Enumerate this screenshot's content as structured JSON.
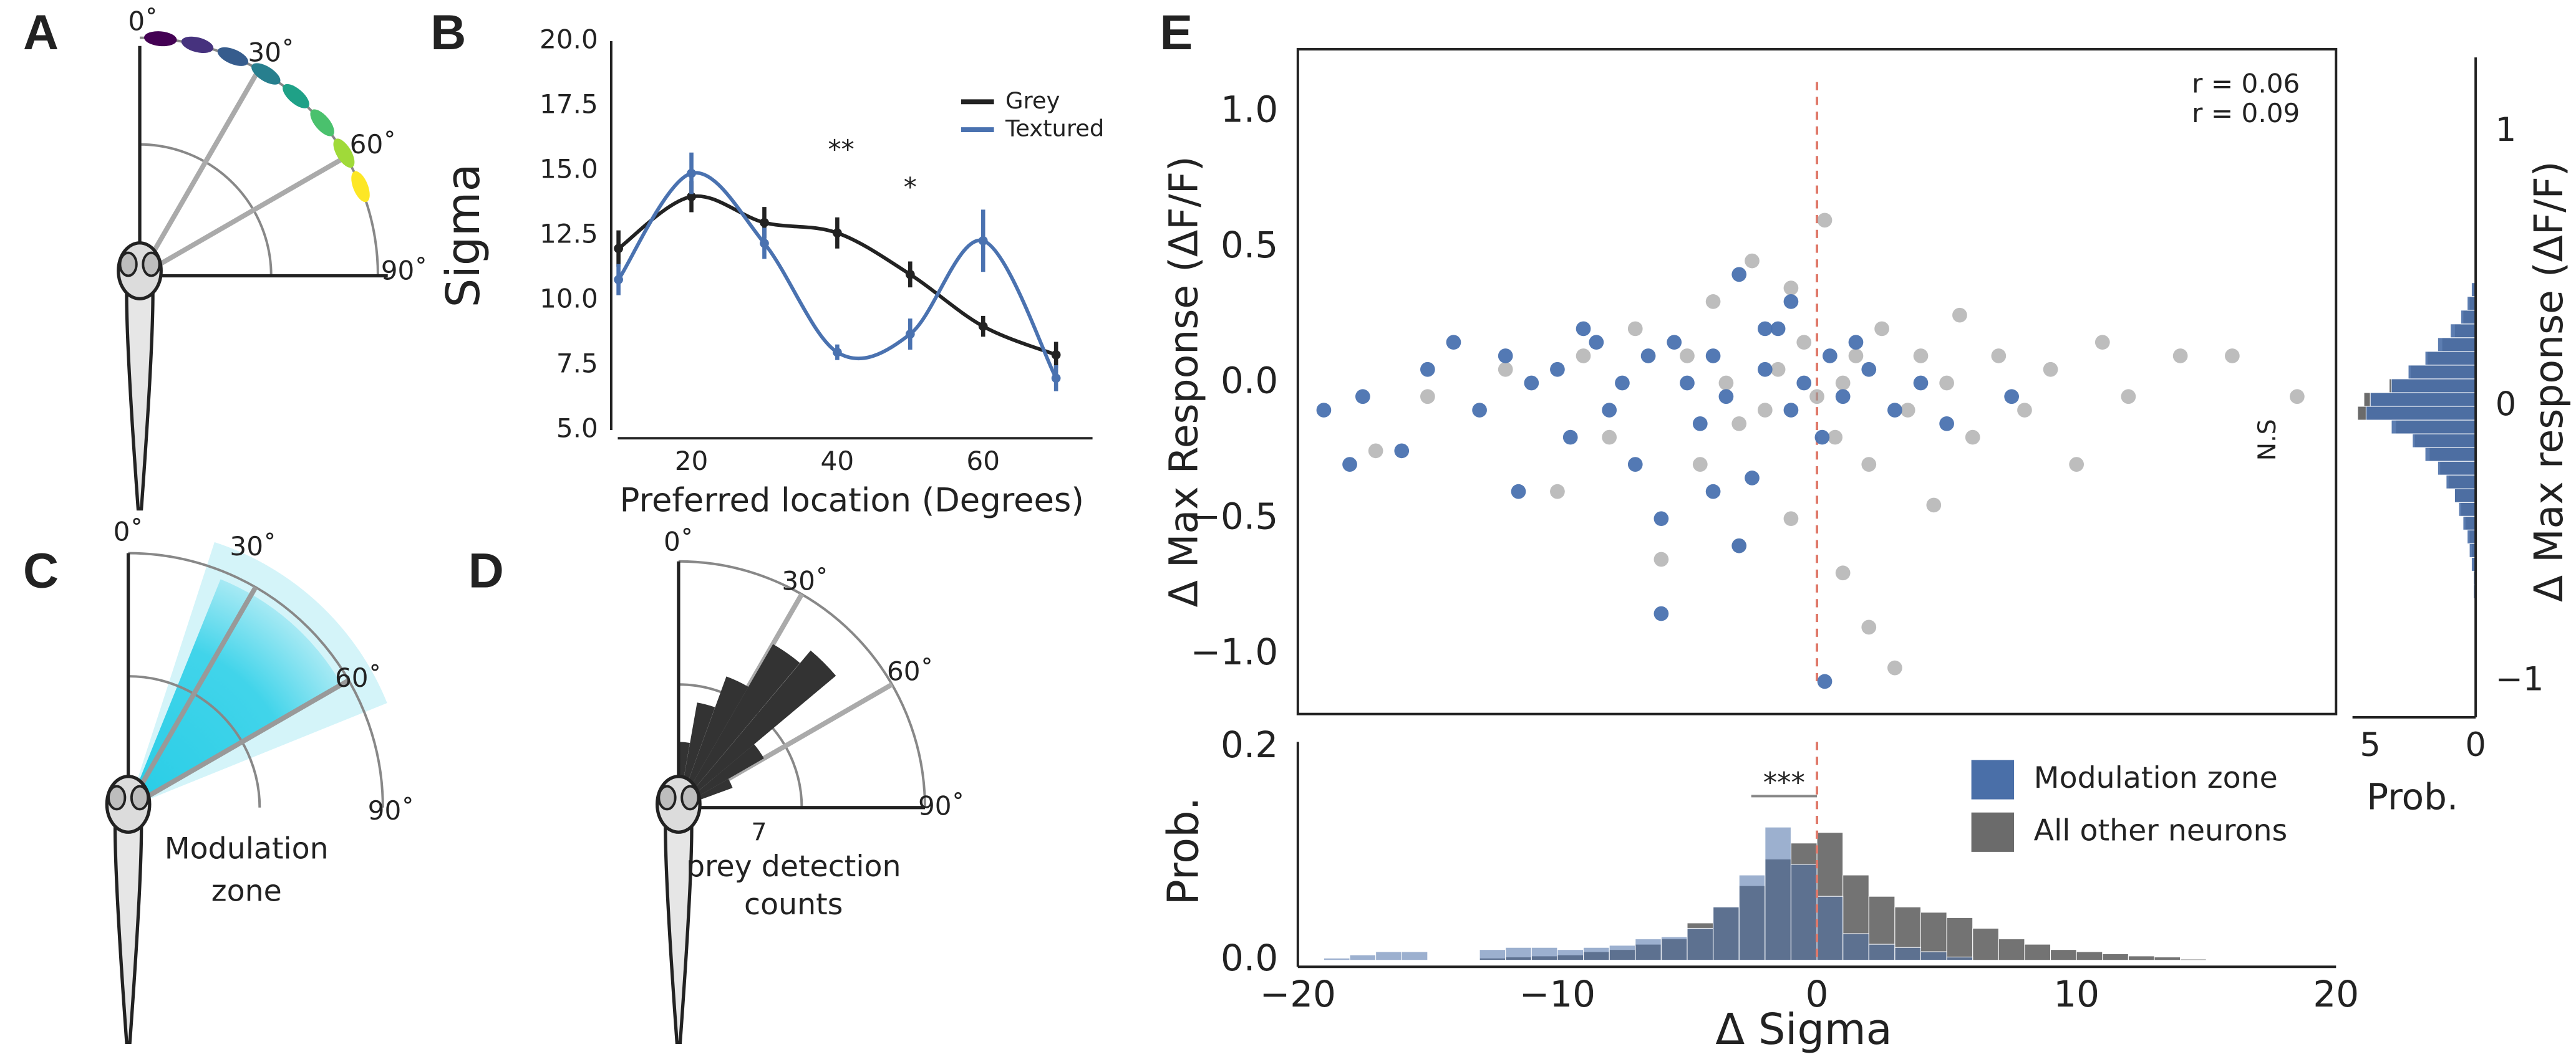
{
  "panels": {
    "letters": [
      "A",
      "B",
      "C",
      "D",
      "E"
    ],
    "A": {
      "angles": [
        "0˚",
        "30˚",
        "60˚",
        "90˚"
      ]
    },
    "C": {
      "angles": [
        "0˚",
        "30˚",
        "60˚",
        "90˚"
      ],
      "label": [
        "Modulation",
        "zone"
      ]
    },
    "D": {
      "angles": [
        "0˚",
        "30˚",
        "60˚",
        "90˚"
      ],
      "scale_tick": 7,
      "label": [
        "prey detection",
        "counts"
      ]
    }
  },
  "chart_data": [
    {
      "type": "line",
      "ylabel": "Sigma",
      "xlabel": "Preferred location (Degrees)",
      "x": [
        10,
        20,
        30,
        40,
        50,
        60,
        70
      ],
      "xlim": [
        9,
        75
      ],
      "xticks": [
        20,
        40,
        60
      ],
      "ylim": [
        5,
        20
      ],
      "yticks": [
        {
          "value": 5,
          "label": "5.0"
        },
        7.5,
        {
          "value": 10,
          "label": "10.0"
        },
        12.5,
        {
          "value": 15,
          "label": "15.0"
        },
        17.5,
        {
          "value": 20,
          "label": "20.0"
        }
      ],
      "series": [
        {
          "name": "Grey",
          "color": "#222222",
          "values": [
            12.0,
            14.0,
            13.0,
            12.6,
            11.0,
            9.0,
            7.9
          ],
          "errors": [
            0.7,
            0.6,
            0.6,
            0.6,
            0.5,
            0.4,
            0.5
          ]
        },
        {
          "name": "Textured",
          "color": "#4a72b0",
          "values": [
            10.8,
            14.9,
            12.2,
            8.0,
            8.7,
            12.3,
            7.0
          ],
          "errors": [
            0.6,
            0.8,
            0.6,
            0.3,
            0.6,
            1.2,
            0.5
          ]
        }
      ],
      "legend": "upper right",
      "annotations": [
        "**",
        "*"
      ]
    },
    {
      "type": "scatter",
      "ylabel": "Δ Max Response (ΔF/F)",
      "xlim": [
        -20,
        20
      ],
      "ylim": [
        -1.22,
        1.23
      ],
      "yticks": [
        {
          "value": -1,
          "label": "−1.0"
        },
        {
          "value": -0.5,
          "label": "−0.5"
        },
        {
          "value": 0,
          "label": "0.0"
        },
        0.5,
        {
          "value": 1,
          "label": "1.0"
        }
      ],
      "vline": 0,
      "series": [
        {
          "color": "#999999",
          "x": [
            -17,
            -15,
            -12,
            -10,
            -9,
            -8,
            -7,
            -6,
            -5,
            -4.5,
            -4,
            -3.5,
            -3,
            -2.5,
            -2,
            -1.5,
            -1,
            -0.5,
            0,
            0.3,
            0.7,
            1,
            1.5,
            2,
            2.5,
            3,
            3.5,
            4,
            4.5,
            5,
            5.5,
            6,
            7,
            8,
            9,
            10,
            11,
            12,
            14,
            16,
            18.5,
            2,
            -1,
            1,
            -3
          ],
          "values": [
            -0.25,
            -0.05,
            0.05,
            -0.4,
            0.1,
            -0.2,
            0.2,
            -0.65,
            0.1,
            -0.3,
            0.3,
            0,
            -0.15,
            0.45,
            -0.1,
            0.05,
            -0.5,
            0.15,
            -0.05,
            0.6,
            -0.2,
            0,
            0.1,
            -0.3,
            0.2,
            -1.05,
            -0.1,
            0.1,
            -0.45,
            0,
            0.25,
            -0.2,
            0.1,
            -0.1,
            0.05,
            -0.3,
            0.15,
            -0.05,
            0.1,
            0.1,
            -0.05,
            -0.9,
            0.35,
            -0.7,
            -0.6
          ]
        },
        {
          "color": "#4a72b0",
          "x": [
            -19,
            -18,
            -17.5,
            -16,
            -15,
            -14,
            -13,
            -12,
            -11.5,
            -11,
            -10,
            -9.5,
            -9,
            -8,
            -7.5,
            -7,
            -6.5,
            -6,
            -5.5,
            -5,
            -4.5,
            -4,
            -3.5,
            -3,
            -2.5,
            -2,
            -1.5,
            -1,
            -0.5,
            0.2,
            0.5,
            1,
            1.5,
            2,
            3,
            4,
            5,
            -2,
            -3,
            -6,
            -4,
            -1,
            7.5,
            -8.5,
            0.3
          ],
          "values": [
            -0.1,
            -0.3,
            -0.05,
            -0.25,
            0.05,
            0.15,
            -0.1,
            0.1,
            -0.4,
            0,
            0.05,
            -0.2,
            0.2,
            -0.1,
            0,
            -0.3,
            0.1,
            -0.5,
            0.15,
            0,
            -0.15,
            0.1,
            -0.05,
            0.4,
            -0.35,
            0.05,
            0.2,
            -0.1,
            0,
            -0.2,
            0.1,
            -0.05,
            0.15,
            0.05,
            -0.1,
            0,
            -0.15,
            0.2,
            -0.6,
            -0.85,
            -0.4,
            0.3,
            -0.05,
            0.15,
            -1.1
          ]
        }
      ],
      "annotations": [
        {
          "text": "r = 0.06",
          "color": "#222222"
        },
        {
          "text": "r = 0.09",
          "color": "#4a72b0"
        }
      ]
    },
    {
      "type": "histogram",
      "xlabel": "Δ Sigma",
      "ylabel": "Prob.",
      "bins": [
        -20,
        -19,
        -18,
        -17,
        -16,
        -15,
        -14,
        -13,
        -12,
        -11,
        -10,
        -9,
        -8,
        -7,
        -6,
        -5,
        -4,
        -3,
        -2,
        -1,
        0,
        1,
        2,
        3,
        4,
        5,
        6,
        7,
        8,
        9,
        10,
        11,
        12,
        13,
        14,
        15,
        16,
        17,
        18,
        19,
        20
      ],
      "xlim": [
        -20,
        20
      ],
      "xticks": [
        {
          "value": -20,
          "label": "−20"
        },
        {
          "value": -10,
          "label": "−10"
        },
        0,
        10,
        20
      ],
      "ylim": [
        0,
        0.205
      ],
      "yticks": [
        {
          "value": 0,
          "label": "0.0"
        },
        0.2
      ],
      "vline": 0,
      "legend": "upper right",
      "series": [
        {
          "name": "Modulation zone",
          "color": "#4a6fa8",
          "values": [
            0,
            0.002,
            0.005,
            0.008,
            0.008,
            0,
            0,
            0.01,
            0.012,
            0.012,
            0.01,
            0.012,
            0.014,
            0.02,
            0.022,
            0.03,
            0.05,
            0.08,
            0.125,
            0.09,
            0.06,
            0.025,
            0.015,
            0.012,
            0.008,
            0.003,
            0,
            0,
            0,
            0,
            0,
            0,
            0,
            0,
            0,
            0,
            0,
            0,
            0,
            0
          ]
        },
        {
          "name": "All other neurons",
          "color": "#6b6b6b",
          "values": [
            0,
            0,
            0,
            0,
            0,
            0,
            0,
            0.002,
            0.003,
            0.004,
            0.005,
            0.008,
            0.01,
            0.015,
            0.02,
            0.035,
            0.05,
            0.07,
            0.095,
            0.11,
            0.12,
            0.08,
            0.06,
            0.05,
            0.045,
            0.04,
            0.03,
            0.02,
            0.015,
            0.01,
            0.008,
            0.006,
            0.004,
            0.003,
            0.001,
            0,
            0,
            0,
            0,
            0
          ]
        }
      ],
      "annotations": [
        "***"
      ]
    },
    {
      "type": "histogram",
      "orientation": "horizontal",
      "xlabel": "Prob.",
      "ylabel": "Δ Max response (ΔF/F)",
      "bins": [
        -0.7,
        -0.65,
        -0.6,
        -0.55,
        -0.5,
        -0.45,
        -0.4,
        -0.35,
        -0.3,
        -0.25,
        -0.2,
        -0.15,
        -0.1,
        -0.05,
        0,
        0.05,
        0.1,
        0.15,
        0.2,
        0.25,
        0.3,
        0.35,
        0.4,
        0.45
      ],
      "xlim": [
        6,
        0
      ],
      "xticks": [
        5,
        0
      ],
      "ylim": [
        -1.12,
        1.3
      ],
      "yticks": [
        1,
        0,
        {
          "value": -1,
          "label": "−1"
        }
      ],
      "series": [
        {
          "color": "#6b6b6b",
          "values": [
            0,
            0,
            0.1,
            0.2,
            0.3,
            0.5,
            0.7,
            1.0,
            1.3,
            1.7,
            2.2,
            2.9,
            3.8,
            5.6,
            5.3,
            4.1,
            3.1,
            2.3,
            1.6,
            1.0,
            0.6,
            0.3,
            0.1
          ]
        },
        {
          "color": "#4a6fa8",
          "values": [
            0.1,
            0.1,
            0.2,
            0.3,
            0.4,
            0.6,
            0.8,
            1.0,
            1.4,
            1.8,
            2.4,
            3.0,
            4.0,
            5.2,
            5.0,
            4.0,
            3.2,
            2.4,
            1.8,
            1.2,
            0.7,
            0.4,
            0.2
          ]
        }
      ],
      "annotations": [
        "N.S"
      ]
    }
  ]
}
